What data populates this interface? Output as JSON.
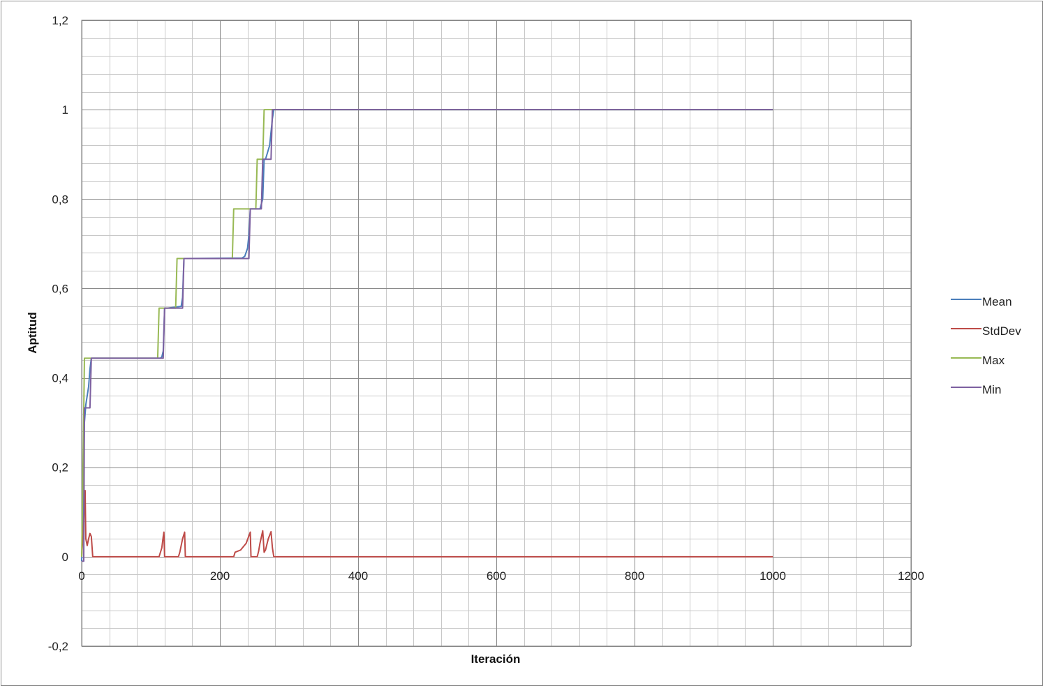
{
  "chart_data": {
    "type": "line",
    "title": "",
    "xlabel": "Iteración",
    "ylabel": "Aptitud",
    "xlim": [
      0,
      1200
    ],
    "ylim": [
      -0.2,
      1.2
    ],
    "x_ticks": [
      0,
      200,
      400,
      600,
      800,
      1000,
      1200
    ],
    "x_tick_labels": [
      "0",
      "200",
      "400",
      "600",
      "800",
      "1000",
      "1200"
    ],
    "y_ticks": [
      -0.2,
      0,
      0.2,
      0.4,
      0.6,
      0.8,
      1,
      1.2
    ],
    "y_tick_labels": [
      "-0,2",
      "0",
      "0,2",
      "0,4",
      "0,6",
      "0,8",
      "1",
      "1,2"
    ],
    "grid": true,
    "legend_position": "right",
    "series": [
      {
        "name": "Mean",
        "color": "#4a7ebb",
        "x": [
          0,
          2,
          4,
          6,
          8,
          10,
          12,
          14,
          16,
          114,
          116,
          118,
          120,
          122,
          124,
          144,
          146,
          148,
          150,
          152,
          232,
          236,
          240,
          242,
          244,
          246,
          258,
          262,
          264,
          266,
          272,
          276,
          278,
          1000
        ],
        "y": [
          -0.01,
          0.1,
          0.3,
          0.34,
          0.36,
          0.38,
          0.42,
          0.444,
          0.444,
          0.444,
          0.447,
          0.46,
          0.556,
          0.556,
          0.556,
          0.56,
          0.58,
          0.667,
          0.667,
          0.667,
          0.668,
          0.672,
          0.69,
          0.72,
          0.778,
          0.778,
          0.778,
          0.8,
          0.889,
          0.889,
          0.92,
          0.98,
          1,
          1
        ]
      },
      {
        "name": "StdDev",
        "color": "#be4b48",
        "x": [
          0,
          3,
          5,
          6,
          8,
          10,
          12,
          14,
          16,
          18,
          112,
          114,
          116,
          118,
          119,
          120,
          140,
          142,
          146,
          149,
          150,
          151,
          220,
          222,
          230,
          238,
          244,
          245,
          246,
          254,
          256,
          258,
          262,
          264,
          266,
          270,
          274,
          276,
          278,
          1000
        ],
        "y": [
          0,
          0.08,
          0.148,
          0.04,
          0.025,
          0.04,
          0.052,
          0.045,
          0,
          0,
          0,
          0.01,
          0.02,
          0.045,
          0.055,
          0,
          0,
          0.01,
          0.04,
          0.055,
          0,
          0,
          0,
          0.01,
          0.015,
          0.03,
          0.055,
          0,
          0,
          0,
          0.012,
          0.03,
          0.058,
          0.01,
          0.015,
          0.04,
          0.056,
          0.02,
          0,
          0
        ]
      },
      {
        "name": "Max",
        "color": "#98b954",
        "x": [
          0,
          2,
          4,
          6,
          110,
          112,
          114,
          136,
          138,
          140,
          218,
          220,
          222,
          252,
          254,
          256,
          262,
          264,
          266,
          1000
        ],
        "y": [
          0,
          0.2,
          0.444,
          0.444,
          0.444,
          0.556,
          0.556,
          0.556,
          0.667,
          0.667,
          0.667,
          0.778,
          0.778,
          0.778,
          0.889,
          0.889,
          0.889,
          1,
          1,
          1
        ]
      },
      {
        "name": "Min",
        "color": "#7d60a0",
        "x": [
          0,
          3,
          4,
          6,
          8,
          12,
          14,
          16,
          18,
          114,
          118,
          120,
          124,
          146,
          148,
          150,
          152,
          242,
          244,
          246,
          250,
          260,
          262,
          264,
          270,
          274,
          276,
          278,
          1000
        ],
        "y": [
          -0.01,
          -0.01,
          0.333,
          0.333,
          0.333,
          0.333,
          0.444,
          0.444,
          0.444,
          0.444,
          0.444,
          0.556,
          0.556,
          0.556,
          0.667,
          0.667,
          0.667,
          0.667,
          0.778,
          0.778,
          0.778,
          0.778,
          0.889,
          0.889,
          0.889,
          0.889,
          1,
          1,
          1
        ]
      }
    ]
  }
}
